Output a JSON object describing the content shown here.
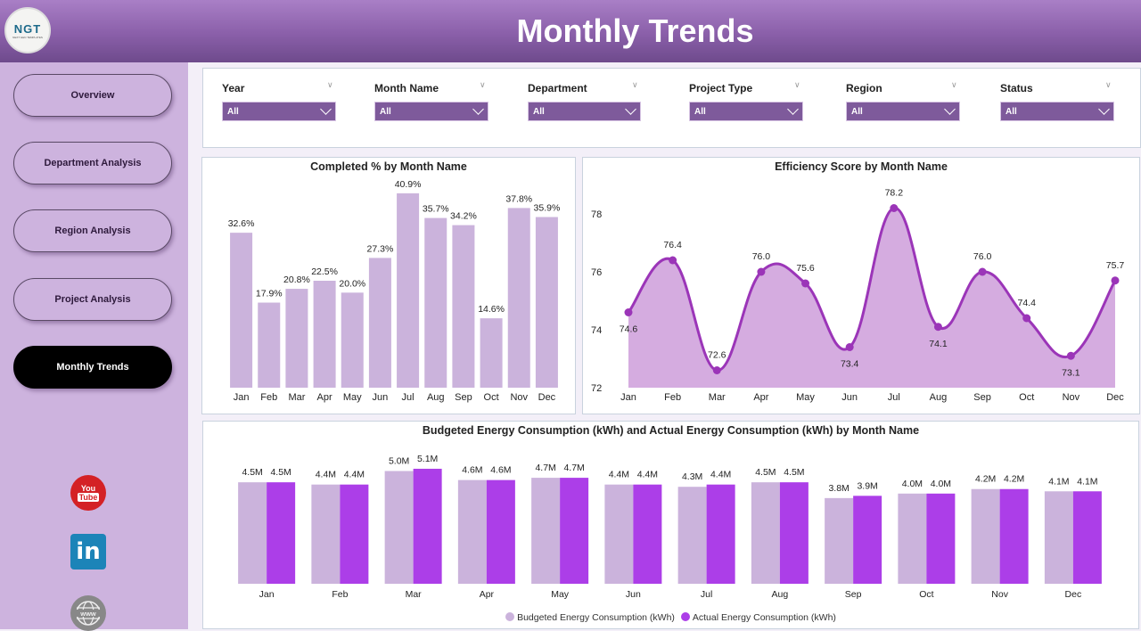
{
  "header": {
    "title": "Monthly Trends",
    "logo_text": "NGT",
    "logo_subtext": "NEXT GEN TEMPLATES"
  },
  "sidebar": {
    "items": [
      {
        "label": "Overview",
        "active": false
      },
      {
        "label": "Department Analysis",
        "active": false
      },
      {
        "label": "Region Analysis",
        "active": false
      },
      {
        "label": "Project Analysis",
        "active": false
      },
      {
        "label": "Monthly Trends",
        "active": true
      }
    ],
    "social": {
      "youtube_top": "You",
      "youtube_bottom": "Tube",
      "linkedin": "in",
      "website": "www"
    }
  },
  "filters": [
    {
      "label": "Year",
      "value": "All"
    },
    {
      "label": "Month Name",
      "value": "All"
    },
    {
      "label": "Department",
      "value": "All"
    },
    {
      "label": "Project Type",
      "value": "All"
    },
    {
      "label": "Region",
      "value": "All"
    },
    {
      "label": "Status",
      "value": "All"
    }
  ],
  "colors": {
    "bar": "#cbb3dc",
    "line": "#9b35b8",
    "area": "#d5ace0",
    "budget": "#cbb3dc",
    "actual": "#ac3ee8",
    "header": "#8a5fa9",
    "slicer": "#7e5a9b"
  },
  "chart_data": [
    {
      "type": "bar",
      "title": "Completed % by Month Name",
      "categories": [
        "Jan",
        "Feb",
        "Mar",
        "Apr",
        "May",
        "Jun",
        "Jul",
        "Aug",
        "Sep",
        "Oct",
        "Nov",
        "Dec"
      ],
      "values": [
        32.6,
        17.9,
        20.8,
        22.5,
        20.0,
        27.3,
        40.9,
        35.7,
        34.2,
        14.6,
        37.8,
        35.9
      ],
      "labels": [
        "32.6%",
        "17.9%",
        "20.8%",
        "22.5%",
        "20.0%",
        "27.3%",
        "40.9%",
        "35.7%",
        "34.2%",
        "14.6%",
        "37.8%",
        "35.9%"
      ],
      "ylim": [
        0,
        45
      ]
    },
    {
      "type": "area",
      "title": "Efficiency Score by Month Name",
      "categories": [
        "Jan",
        "Feb",
        "Mar",
        "Apr",
        "May",
        "Jun",
        "Jul",
        "Aug",
        "Sep",
        "Oct",
        "Nov",
        "Dec"
      ],
      "values": [
        74.6,
        76.4,
        72.6,
        76.0,
        75.6,
        73.4,
        78.2,
        74.1,
        76.0,
        74.4,
        73.1,
        75.7
      ],
      "labels": [
        "74.6",
        "76.4",
        "72.6",
        "76.0",
        "75.6",
        "73.4",
        "78.2",
        "74.1",
        "76.0",
        "74.4",
        "73.1",
        "75.7"
      ],
      "label_pos": [
        "below",
        "above",
        "above",
        "above",
        "above",
        "below",
        "above",
        "below",
        "above",
        "above",
        "below",
        "above"
      ],
      "yticks": [
        "72",
        "74",
        "76",
        "78"
      ],
      "ylim": [
        72,
        79
      ]
    },
    {
      "type": "bar",
      "title": "Budgeted Energy Consumption (kWh) and Actual Energy Consumption (kWh) by Month Name",
      "categories": [
        "Jan",
        "Feb",
        "Mar",
        "Apr",
        "May",
        "Jun",
        "Jul",
        "Aug",
        "Sep",
        "Oct",
        "Nov",
        "Dec"
      ],
      "series": [
        {
          "name": "Budgeted Energy Consumption (kWh)",
          "values": [
            4.5,
            4.4,
            5.0,
            4.6,
            4.7,
            4.4,
            4.3,
            4.5,
            3.8,
            4.0,
            4.2,
            4.1
          ],
          "labels": [
            "4.5M",
            "4.4M",
            "5.0M",
            "4.6M",
            "4.7M",
            "4.4M",
            "4.3M",
            "4.5M",
            "3.8M",
            "4.0M",
            "4.2M",
            "4.1M"
          ]
        },
        {
          "name": "Actual Energy Consumption (kWh)",
          "values": [
            4.5,
            4.4,
            5.1,
            4.6,
            4.7,
            4.4,
            4.4,
            4.5,
            3.9,
            4.0,
            4.2,
            4.1
          ],
          "labels": [
            "4.5M",
            "4.4M",
            "5.1M",
            "4.6M",
            "4.7M",
            "4.4M",
            "4.4M",
            "4.5M",
            "3.9M",
            "4.0M",
            "4.2M",
            "4.1M"
          ]
        }
      ],
      "unit": "M",
      "ylim": [
        0,
        5.5
      ],
      "legend": "bottom"
    }
  ]
}
